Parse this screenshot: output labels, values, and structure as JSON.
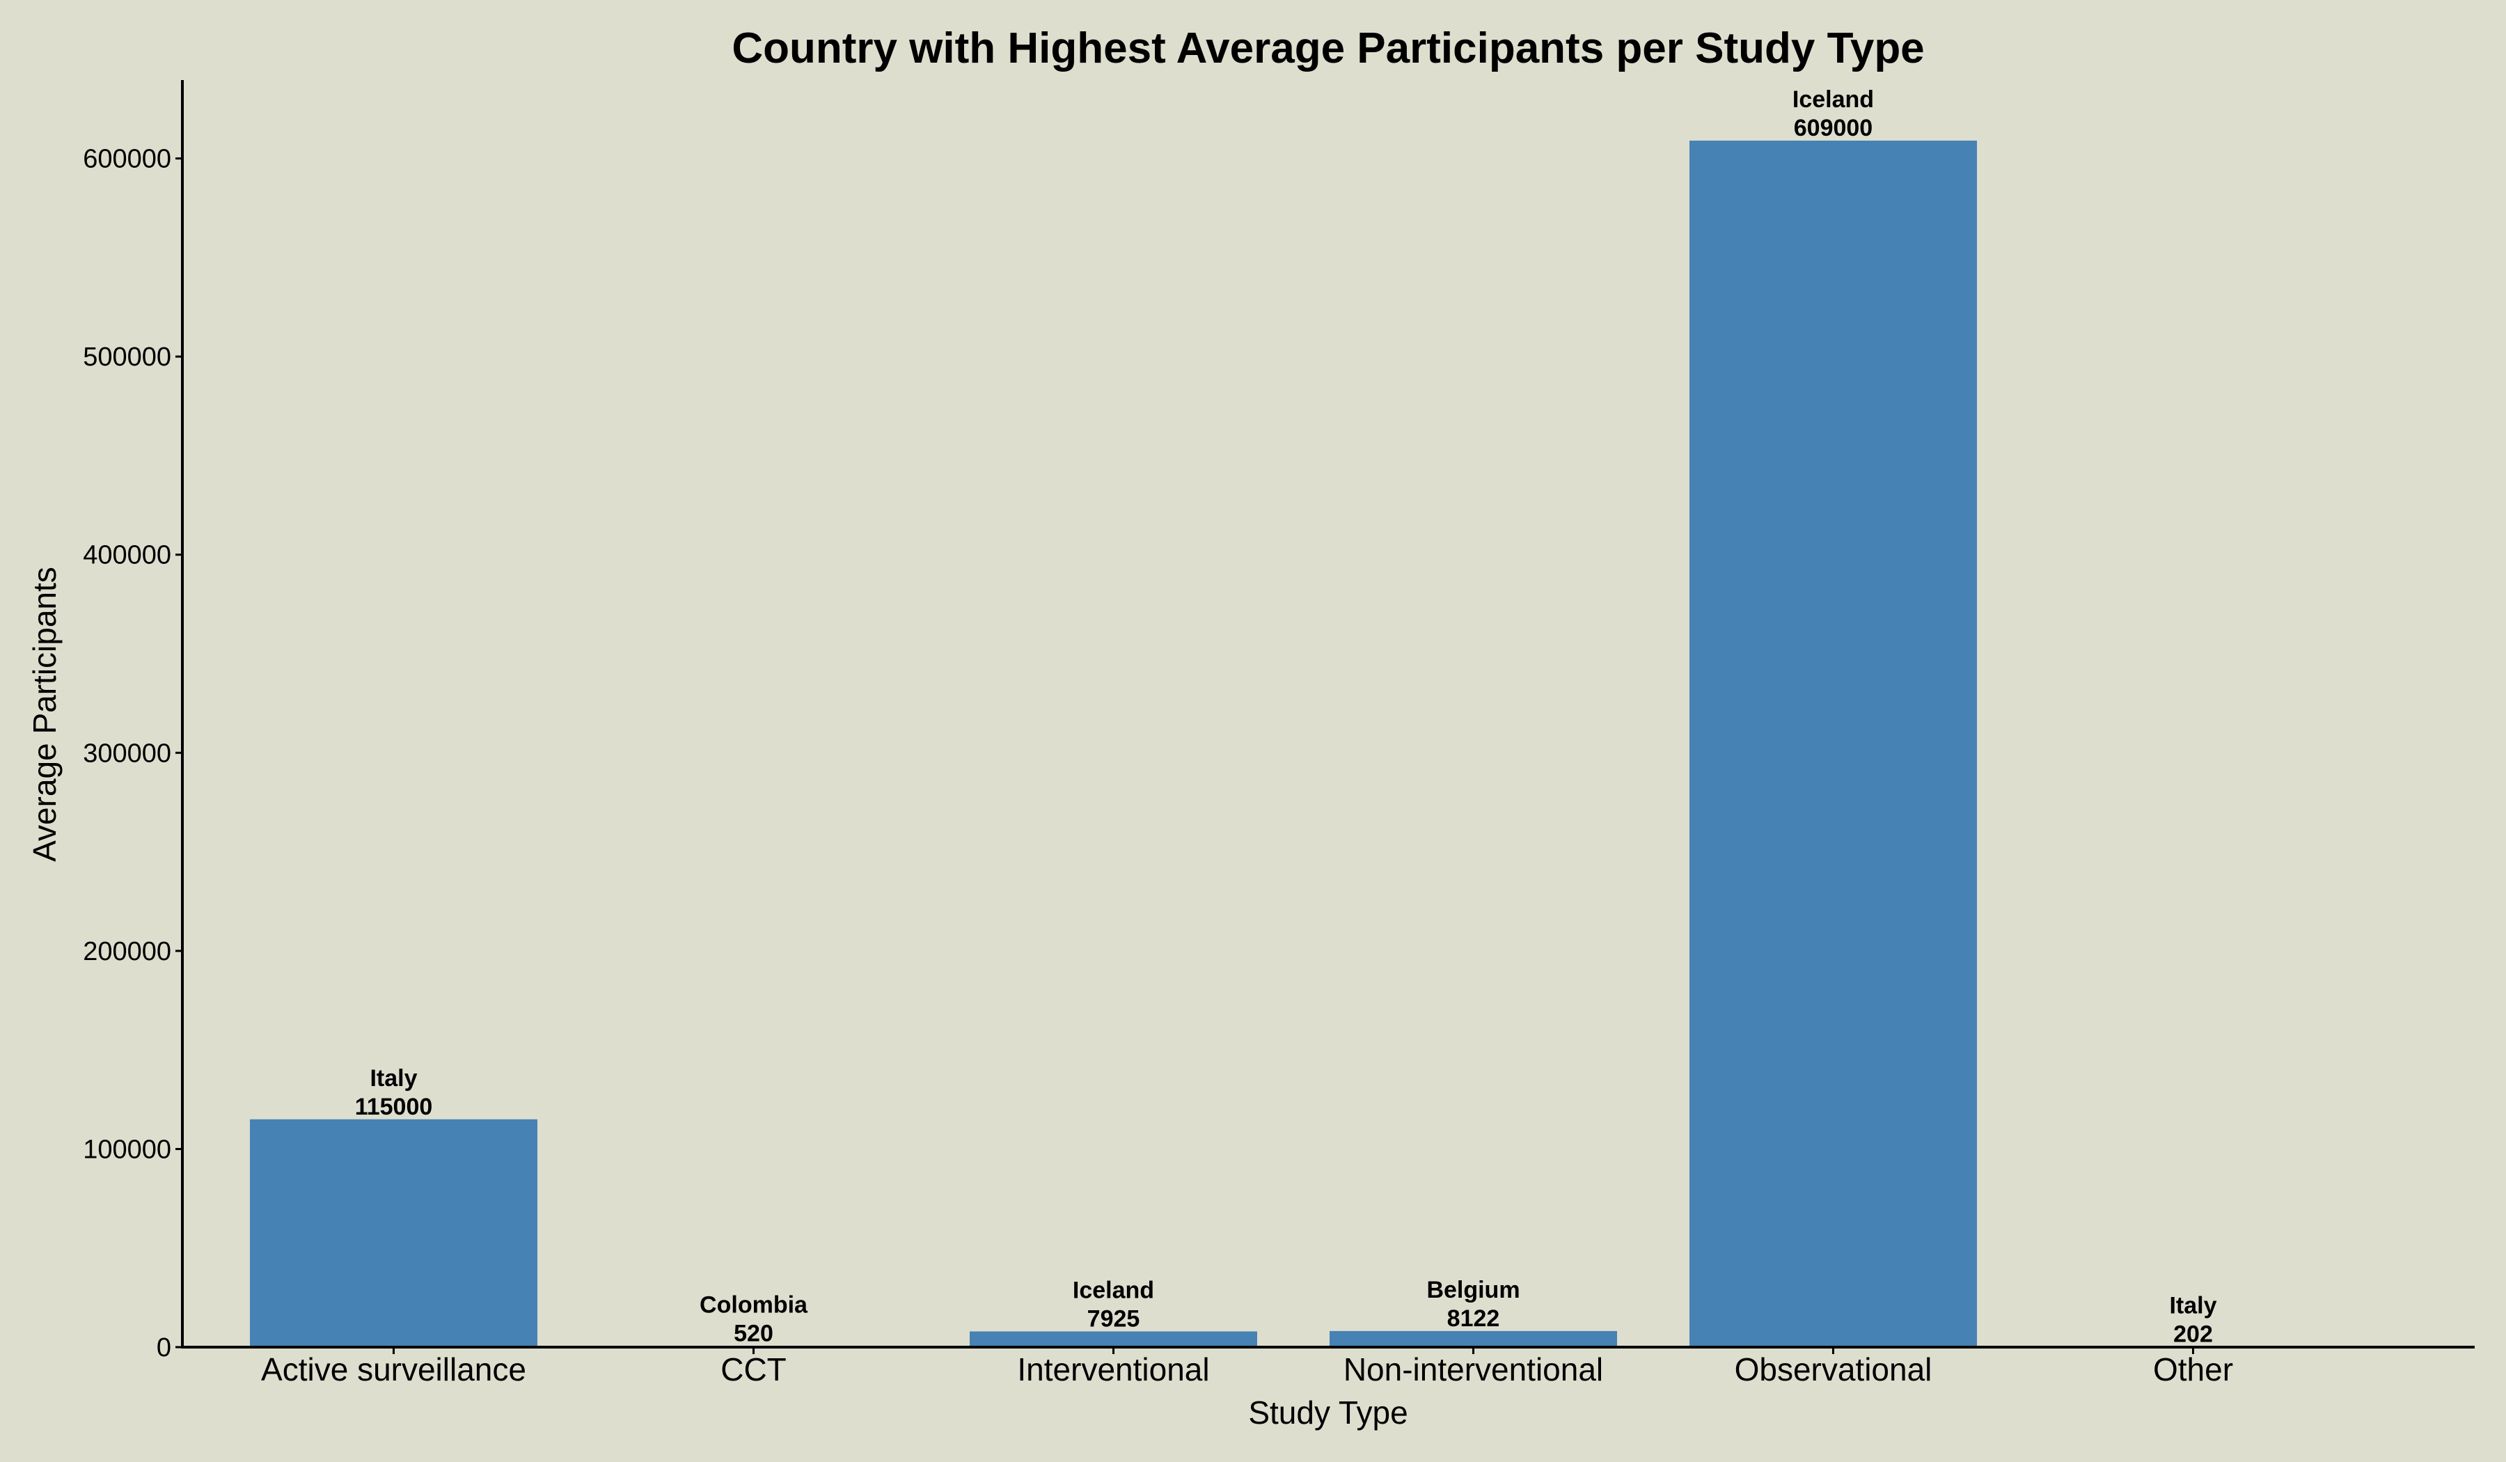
{
  "chart_data": {
    "type": "bar",
    "title": "Country with Highest Average Participants per Study Type",
    "xlabel": "Study Type",
    "ylabel": "Average Participants",
    "ylim": [
      0,
      640000
    ],
    "yticks": [
      0,
      100000,
      200000,
      300000,
      400000,
      500000,
      600000
    ],
    "grid": false,
    "bar_color": "#4682b4",
    "categories": [
      "Active surveillance",
      "CCT",
      "Interventional",
      "Non-interventional",
      "Observational",
      "Other"
    ],
    "values": [
      115000,
      520,
      7925,
      8122,
      609000,
      202
    ],
    "countries": [
      "Italy",
      "Colombia",
      "Iceland",
      "Belgium",
      "Iceland",
      "Italy"
    ],
    "value_labels": [
      "115000",
      "520",
      "7925",
      "8122",
      "609000",
      "202"
    ]
  }
}
